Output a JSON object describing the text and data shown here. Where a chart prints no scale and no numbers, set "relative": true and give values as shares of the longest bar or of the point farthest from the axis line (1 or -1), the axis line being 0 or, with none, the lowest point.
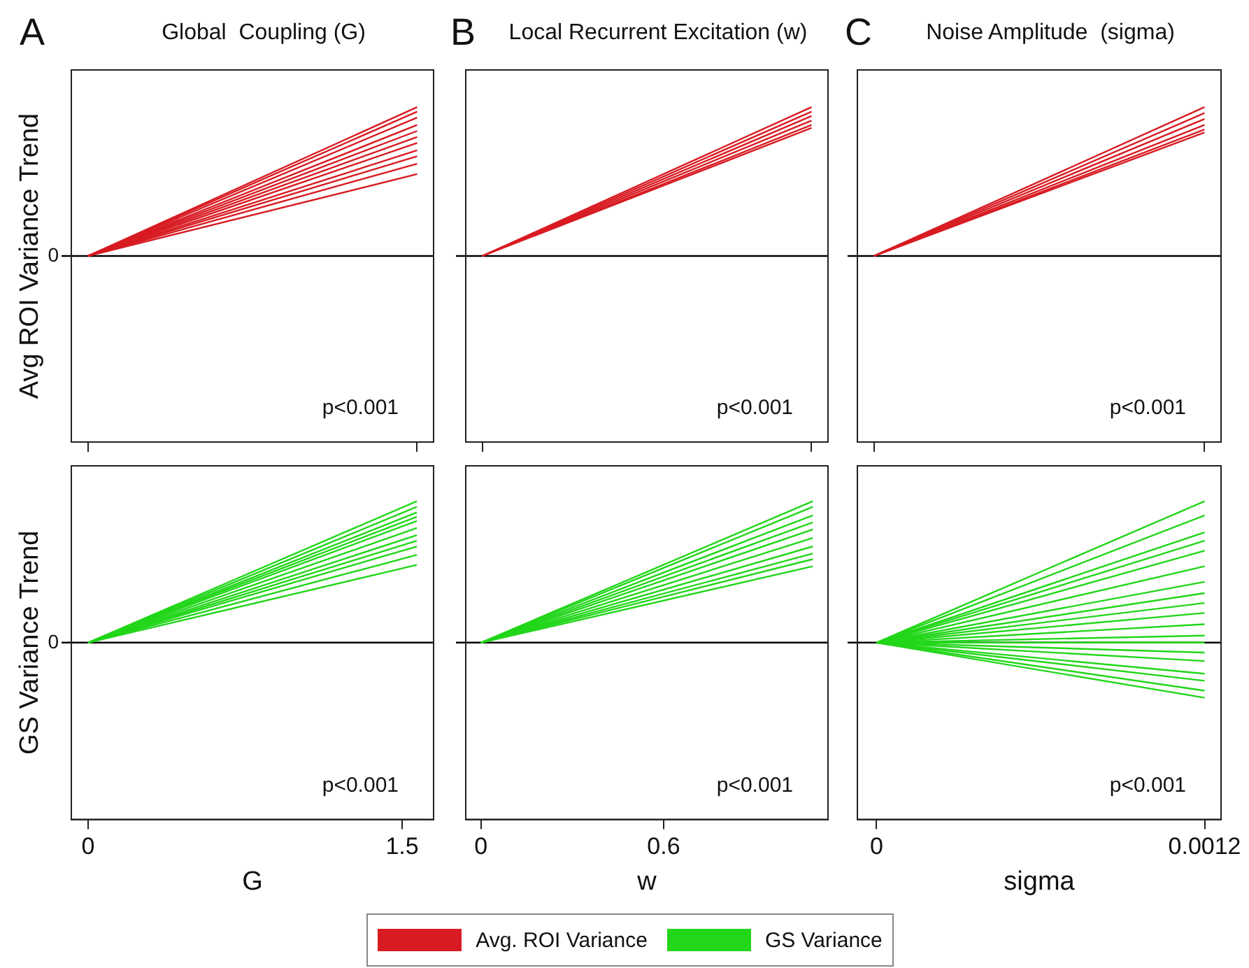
{
  "chart_data": [
    {
      "type": "line",
      "title": "Global  Coupling (G)",
      "ylabel": "Avg ROI Variance Trend",
      "annotations": [
        "p<0.001",
        "A"
      ],
      "relative": true,
      "categories": [
        null,
        null
      ],
      "tick_labels": false,
      "legend": "bottom",
      "ref_lines": [
        {
          "axis": "y",
          "value": 0,
          "label": "0"
        }
      ],
      "series": [
        {
          "name": "Avg. ROI Variance",
          "color": "#d81b22",
          "values": [
            0,
            1
          ]
        },
        {
          "color": "#d81b22",
          "values": [
            0,
            0.97
          ]
        },
        {
          "color": "#d81b22",
          "values": [
            0,
            0.93
          ]
        },
        {
          "color": "#d81b22",
          "values": [
            0,
            0.88
          ]
        },
        {
          "color": "#d81b22",
          "values": [
            0,
            0.84
          ]
        },
        {
          "color": "#d81b22",
          "values": [
            0,
            0.8
          ]
        },
        {
          "color": "#d81b22",
          "values": [
            0,
            0.76
          ]
        },
        {
          "color": "#d81b22",
          "values": [
            0,
            0.71
          ]
        },
        {
          "color": "#d81b22",
          "values": [
            0,
            0.67
          ]
        },
        {
          "color": "#d81b22",
          "values": [
            0,
            0.62
          ]
        },
        {
          "color": "#d81b22",
          "values": [
            0,
            0.55
          ]
        }
      ]
    },
    {
      "type": "line",
      "title": "Local Recurrent Excitation (w)",
      "annotations": [
        "p<0.001",
        "B"
      ],
      "relative": true,
      "categories": [
        null,
        null
      ],
      "tick_labels": false,
      "ref_lines": [
        {
          "axis": "y",
          "value": 0
        }
      ],
      "series": [
        {
          "color": "#d81b22",
          "values": [
            0,
            1
          ]
        },
        {
          "color": "#d81b22",
          "values": [
            0,
            0.97
          ]
        },
        {
          "color": "#d81b22",
          "values": [
            0,
            0.94
          ]
        },
        {
          "color": "#d81b22",
          "values": [
            0,
            0.91
          ]
        },
        {
          "color": "#d81b22",
          "values": [
            0,
            0.88
          ]
        },
        {
          "color": "#d81b22",
          "values": [
            0,
            0.86
          ]
        }
      ]
    },
    {
      "type": "line",
      "title": "Noise Amplitude  (sigma)",
      "annotations": [
        "p<0.001",
        "C"
      ],
      "relative": true,
      "categories": [
        null,
        null
      ],
      "tick_labels": false,
      "ref_lines": [
        {
          "axis": "y",
          "value": 0
        }
      ],
      "series": [
        {
          "color": "#d81b22",
          "values": [
            0,
            1
          ]
        },
        {
          "color": "#d81b22",
          "values": [
            0,
            0.96
          ]
        },
        {
          "color": "#d81b22",
          "values": [
            0,
            0.92
          ]
        },
        {
          "color": "#d81b22",
          "values": [
            0,
            0.88
          ]
        },
        {
          "color": "#d81b22",
          "values": [
            0,
            0.85
          ]
        },
        {
          "color": "#d81b22",
          "values": [
            0,
            0.83
          ]
        }
      ]
    },
    {
      "type": "line",
      "xlabel": "G",
      "ylabel": "GS Variance Trend",
      "annotations": [
        "p<0.001"
      ],
      "relative": true,
      "x": [
        0,
        1.57
      ],
      "xlim": [
        -0.08,
        1.65
      ],
      "xticks": [
        0,
        1.5
      ],
      "tick_labels": "x",
      "legend": "bottom",
      "ref_lines": [
        {
          "axis": "y",
          "value": 0,
          "label": "0"
        }
      ],
      "series": [
        {
          "name": "GS Variance",
          "color": "#22d61a",
          "values": [
            0,
            1
          ]
        },
        {
          "color": "#22d61a",
          "values": [
            0,
            0.96
          ]
        },
        {
          "color": "#22d61a",
          "values": [
            0,
            0.92
          ]
        },
        {
          "color": "#22d61a",
          "values": [
            0,
            0.89
          ]
        },
        {
          "color": "#22d61a",
          "values": [
            0,
            0.86
          ]
        },
        {
          "color": "#22d61a",
          "values": [
            0,
            0.81
          ]
        },
        {
          "color": "#22d61a",
          "values": [
            0,
            0.76
          ]
        },
        {
          "color": "#22d61a",
          "values": [
            0,
            0.72
          ]
        },
        {
          "color": "#22d61a",
          "values": [
            0,
            0.68
          ]
        },
        {
          "color": "#22d61a",
          "values": [
            0,
            0.62
          ]
        },
        {
          "color": "#22d61a",
          "values": [
            0,
            0.55
          ]
        }
      ]
    },
    {
      "type": "line",
      "xlabel": "w",
      "annotations": [
        "p<0.001"
      ],
      "relative": true,
      "x": [
        0,
        1.09
      ],
      "xlim": [
        -0.05,
        1.14
      ],
      "xticks": [
        0,
        0.6
      ],
      "tick_labels": "x",
      "ref_lines": [
        {
          "axis": "y",
          "value": 0
        }
      ],
      "series": [
        {
          "color": "#22d61a",
          "values": [
            0,
            1
          ]
        },
        {
          "color": "#22d61a",
          "values": [
            0,
            0.96
          ]
        },
        {
          "color": "#22d61a",
          "values": [
            0,
            0.9
          ]
        },
        {
          "color": "#22d61a",
          "values": [
            0,
            0.85
          ]
        },
        {
          "color": "#22d61a",
          "values": [
            0,
            0.8
          ]
        },
        {
          "color": "#22d61a",
          "values": [
            0,
            0.74
          ]
        },
        {
          "color": "#22d61a",
          "values": [
            0,
            0.68
          ]
        },
        {
          "color": "#22d61a",
          "values": [
            0,
            0.63
          ]
        },
        {
          "color": "#22d61a",
          "values": [
            0,
            0.59
          ]
        },
        {
          "color": "#22d61a",
          "values": [
            0,
            0.54
          ]
        }
      ]
    },
    {
      "type": "line",
      "xlabel": "sigma",
      "annotations": [
        "p<0.001"
      ],
      "relative": true,
      "x": [
        0,
        0.0012
      ],
      "xlim": [
        -7e-05,
        0.00126
      ],
      "xticks": [
        0,
        0.0012
      ],
      "tick_labels": "x",
      "ref_lines": [
        {
          "axis": "y",
          "value": 0
        }
      ],
      "series": [
        {
          "color": "#22d61a",
          "values": [
            0,
            1
          ]
        },
        {
          "color": "#22d61a",
          "values": [
            0,
            0.9
          ]
        },
        {
          "color": "#22d61a",
          "values": [
            0,
            0.78
          ]
        },
        {
          "color": "#22d61a",
          "values": [
            0,
            0.72
          ]
        },
        {
          "color": "#22d61a",
          "values": [
            0,
            0.65
          ]
        },
        {
          "color": "#22d61a",
          "values": [
            0,
            0.54
          ]
        },
        {
          "color": "#22d61a",
          "values": [
            0,
            0.43
          ]
        },
        {
          "color": "#22d61a",
          "values": [
            0,
            0.35
          ]
        },
        {
          "color": "#22d61a",
          "values": [
            0,
            0.28
          ]
        },
        {
          "color": "#22d61a",
          "values": [
            0,
            0.21
          ]
        },
        {
          "color": "#22d61a",
          "values": [
            0,
            0.13
          ]
        },
        {
          "color": "#22d61a",
          "values": [
            0,
            0.05
          ]
        },
        {
          "color": "#22d61a",
          "values": [
            0,
            0
          ]
        },
        {
          "color": "#22d61a",
          "values": [
            0,
            -0.07
          ]
        },
        {
          "color": "#22d61a",
          "values": [
            0,
            -0.13
          ]
        },
        {
          "color": "#22d61a",
          "values": [
            0,
            -0.22
          ]
        },
        {
          "color": "#22d61a",
          "values": [
            0,
            -0.27
          ]
        },
        {
          "color": "#22d61a",
          "values": [
            0,
            -0.34
          ]
        },
        {
          "color": "#22d61a",
          "values": [
            0,
            -0.39
          ]
        }
      ]
    }
  ]
}
